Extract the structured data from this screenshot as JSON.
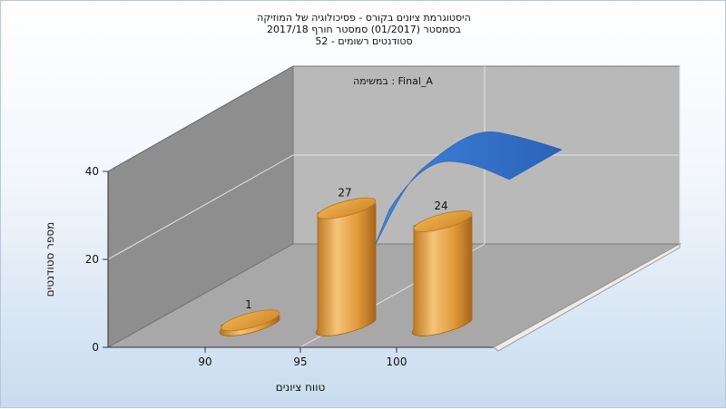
{
  "chart_data": {
    "type": "bar",
    "title_lines": [
      "היסטוגרמת ציונים בקורס - פסיכולוגיה של המוזיקה",
      "בסמסטר  (01/2017)  סמסטר חורף 2017/18",
      "סטודנטים רשומים - 52"
    ],
    "subtitle": "במשימה : Final_A",
    "xlabel": "טווח ציונים",
    "ylabel": "מספר סטודנטים",
    "x_ticks": [
      "90",
      "95",
      "100"
    ],
    "y_ticks": [
      "0",
      "20",
      "40"
    ],
    "ylim": [
      0,
      40
    ],
    "categories": [
      "90",
      "95",
      "100"
    ],
    "values": [
      1,
      27,
      24
    ],
    "value_labels": [
      "1",
      "27",
      "24"
    ],
    "grid": true,
    "colors": {
      "bar": "#e5a546",
      "curve": "#3d7bd1",
      "wall_back": "#b8b8b8",
      "wall_left": "#8c8c8c",
      "floor": "#a9a9a9"
    }
  }
}
